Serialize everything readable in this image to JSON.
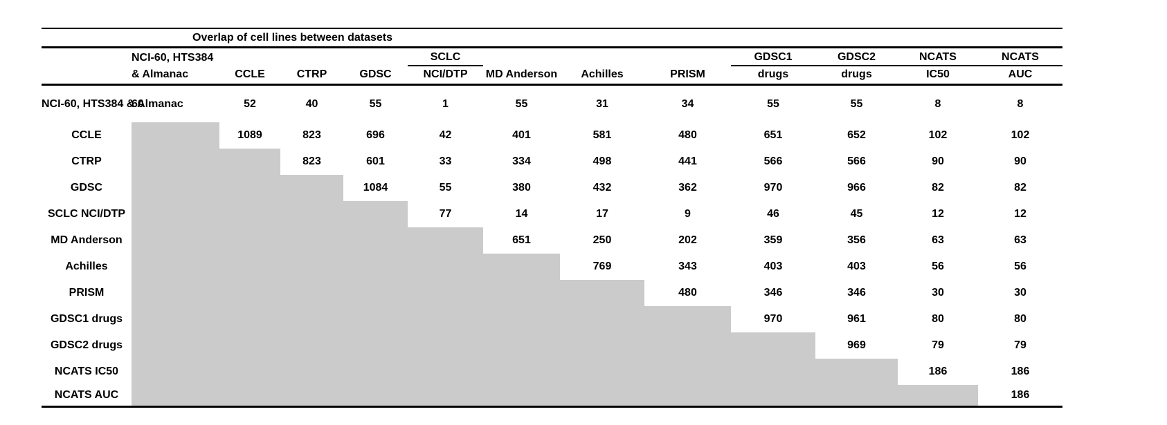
{
  "title": "Overlap of cell lines between datasets",
  "colors": {
    "background": "#ffffff",
    "text": "#000000",
    "shaded_cell": "#cbcbcb",
    "rule": "#000000"
  },
  "columns": [
    {
      "line1": "NCI-60, HTS384",
      "line2": "& Almanac"
    },
    {
      "line1": "",
      "line2": "CCLE"
    },
    {
      "line1": "",
      "line2": "CTRP"
    },
    {
      "line1": "",
      "line2": "GDSC"
    },
    {
      "line1": "SCLC",
      "line2": "NCI/DTP"
    },
    {
      "line1": "",
      "line2": "MD Anderson"
    },
    {
      "line1": "",
      "line2": "Achilles"
    },
    {
      "line1": "",
      "line2": "PRISM"
    },
    {
      "line1": "GDSC1",
      "line2": "drugs"
    },
    {
      "line1": "GDSC2",
      "line2": "drugs"
    },
    {
      "line1": "NCATS",
      "line2": "IC50"
    },
    {
      "line1": "NCATS",
      "line2": "AUC"
    }
  ],
  "rows": [
    {
      "label": "NCI-60, HTS384\n& Almanac",
      "values": [
        60,
        52,
        40,
        55,
        1,
        55,
        31,
        34,
        55,
        55,
        8,
        8
      ]
    },
    {
      "label": "CCLE",
      "values": [
        null,
        1089,
        823,
        696,
        42,
        401,
        581,
        480,
        651,
        652,
        102,
        102
      ]
    },
    {
      "label": "CTRP",
      "values": [
        null,
        null,
        823,
        601,
        33,
        334,
        498,
        441,
        566,
        566,
        90,
        90
      ]
    },
    {
      "label": "GDSC",
      "values": [
        null,
        null,
        null,
        1084,
        55,
        380,
        432,
        362,
        970,
        966,
        82,
        82
      ]
    },
    {
      "label": "SCLC NCI/DTP",
      "values": [
        null,
        null,
        null,
        null,
        77,
        14,
        17,
        9,
        46,
        45,
        12,
        12
      ]
    },
    {
      "label": "MD Anderson",
      "values": [
        null,
        null,
        null,
        null,
        null,
        651,
        250,
        202,
        359,
        356,
        63,
        63
      ]
    },
    {
      "label": "Achilles",
      "values": [
        null,
        null,
        null,
        null,
        null,
        null,
        769,
        343,
        403,
        403,
        56,
        56
      ]
    },
    {
      "label": "PRISM",
      "values": [
        null,
        null,
        null,
        null,
        null,
        null,
        null,
        480,
        346,
        346,
        30,
        30
      ]
    },
    {
      "label": "GDSC1 drugs",
      "values": [
        null,
        null,
        null,
        null,
        null,
        null,
        null,
        null,
        970,
        961,
        80,
        80
      ]
    },
    {
      "label": "GDSC2 drugs",
      "values": [
        null,
        null,
        null,
        null,
        null,
        null,
        null,
        null,
        null,
        969,
        79,
        79
      ]
    },
    {
      "label": "NCATS IC50",
      "values": [
        null,
        null,
        null,
        null,
        null,
        null,
        null,
        null,
        null,
        null,
        186,
        186
      ]
    },
    {
      "label": "NCATS AUC",
      "values": [
        null,
        null,
        null,
        null,
        null,
        null,
        null,
        null,
        null,
        null,
        null,
        186
      ]
    }
  ],
  "chart_data": {
    "type": "table",
    "title": "Overlap of cell lines between datasets",
    "row_labels": [
      "NCI-60, HTS384 & Almanac",
      "CCLE",
      "CTRP",
      "GDSC",
      "SCLC NCI/DTP",
      "MD Anderson",
      "Achilles",
      "PRISM",
      "GDSC1 drugs",
      "GDSC2 drugs",
      "NCATS IC50",
      "NCATS AUC"
    ],
    "column_labels": [
      "NCI-60, HTS384 & Almanac",
      "CCLE",
      "CTRP",
      "GDSC",
      "SCLC NCI/DTP",
      "MD Anderson",
      "Achilles",
      "PRISM",
      "GDSC1 drugs",
      "GDSC2 drugs",
      "NCATS IC50",
      "NCATS AUC"
    ],
    "matrix": [
      [
        60,
        52,
        40,
        55,
        1,
        55,
        31,
        34,
        55,
        55,
        8,
        8
      ],
      [
        null,
        1089,
        823,
        696,
        42,
        401,
        581,
        480,
        651,
        652,
        102,
        102
      ],
      [
        null,
        null,
        823,
        601,
        33,
        334,
        498,
        441,
        566,
        566,
        90,
        90
      ],
      [
        null,
        null,
        null,
        1084,
        55,
        380,
        432,
        362,
        970,
        966,
        82,
        82
      ],
      [
        null,
        null,
        null,
        null,
        77,
        14,
        17,
        9,
        46,
        45,
        12,
        12
      ],
      [
        null,
        null,
        null,
        null,
        null,
        651,
        250,
        202,
        359,
        356,
        63,
        63
      ],
      [
        null,
        null,
        null,
        null,
        null,
        null,
        769,
        343,
        403,
        403,
        56,
        56
      ],
      [
        null,
        null,
        null,
        null,
        null,
        null,
        null,
        480,
        346,
        346,
        30,
        30
      ],
      [
        null,
        null,
        null,
        null,
        null,
        null,
        null,
        null,
        970,
        961,
        80,
        80
      ],
      [
        null,
        null,
        null,
        null,
        null,
        null,
        null,
        null,
        null,
        969,
        79,
        79
      ],
      [
        null,
        null,
        null,
        null,
        null,
        null,
        null,
        null,
        null,
        null,
        186,
        186
      ],
      [
        null,
        null,
        null,
        null,
        null,
        null,
        null,
        null,
        null,
        null,
        null,
        186
      ]
    ],
    "layout_hints": {
      "shape": "upper-triangular matrix",
      "lower_triangle": "shaded gray (no values)",
      "grid": "horizontal rules only (top, under title, under headers, bottom)",
      "diagonal": "dataset size (self-overlap)"
    }
  }
}
